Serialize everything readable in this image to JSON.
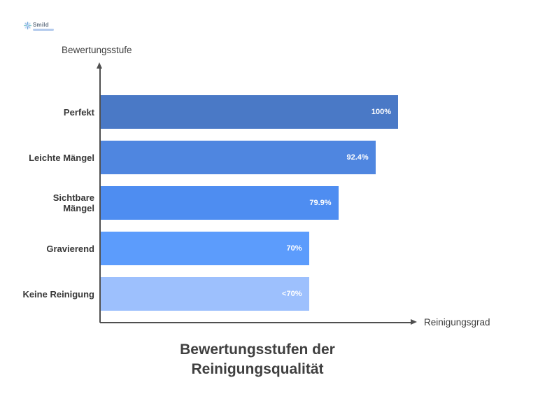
{
  "brand": {
    "logo_text": "Smild"
  },
  "chart_data": {
    "type": "bar",
    "orientation": "horizontal",
    "title": "Bewertungsstufen der Reinigungsqualität",
    "title_lines": [
      "Bewertungsstufen der",
      "Reinigungsqualität"
    ],
    "ylabel": "Bewertungsstufe",
    "xlabel": "Reinigungsgrad",
    "categories": [
      "Perfekt",
      "Leichte Mängel",
      "Sichtbare\nMängel",
      "Gravierend",
      "Keine Reinigung"
    ],
    "values": [
      100,
      92.4,
      79.9,
      70,
      70
    ],
    "data_labels": [
      "100%",
      "92.4%",
      "79.9%",
      "70%",
      "<70%"
    ],
    "bar_colors": [
      "#4a79c6",
      "#4f86e0",
      "#4e8df1",
      "#5c9cfc",
      "#9dc0fd"
    ],
    "xlim": [
      0,
      100
    ],
    "grid": false,
    "legend": "none",
    "colors": {
      "axis": "#4f4f4f",
      "text": "#3e3e3e",
      "data_label": "#ffffff",
      "background": "#ffffff"
    }
  }
}
